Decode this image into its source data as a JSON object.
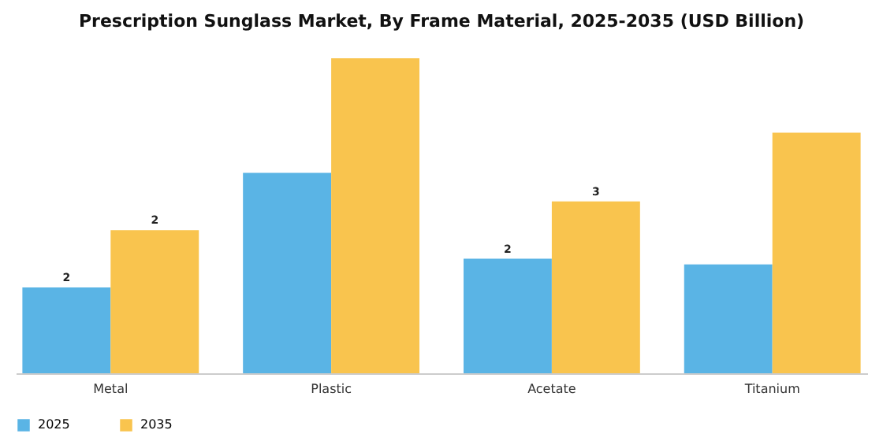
{
  "chart_data": {
    "type": "bar",
    "title": "Prescription Sunglass Market, By Frame Material, 2025-2035 (USD Billion)",
    "categories": [
      "Metal",
      "Plastic",
      "Acetate",
      "Titanium"
    ],
    "legend": "bottom",
    "series": [
      {
        "name": "2025",
        "color": "#5ab4e5",
        "values": [
          1.5,
          3.5,
          2.0,
          1.9
        ],
        "value_labels": [
          "2",
          null,
          "2",
          null
        ]
      },
      {
        "name": "2035",
        "color": "#f9c44e",
        "values": [
          2.5,
          5.5,
          3.0,
          4.2
        ],
        "value_labels": [
          "2",
          null,
          "3",
          null
        ]
      }
    ]
  }
}
